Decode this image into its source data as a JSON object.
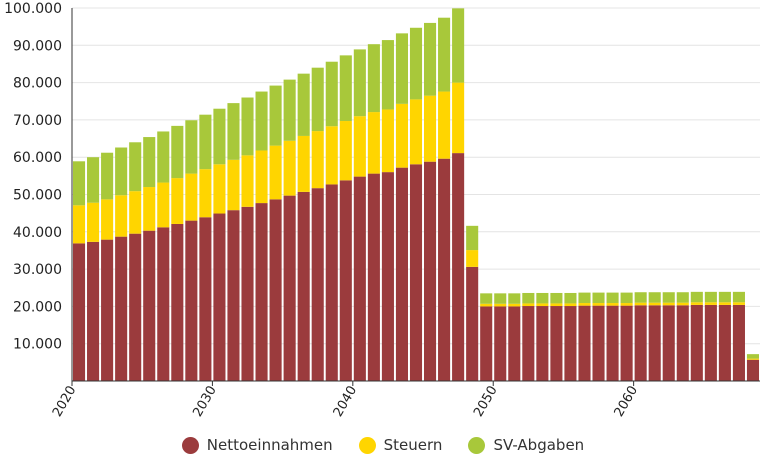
{
  "chart_data": {
    "type": "bar",
    "stacked": true,
    "x": [
      2020,
      2021,
      2022,
      2023,
      2024,
      2025,
      2026,
      2027,
      2028,
      2029,
      2030,
      2031,
      2032,
      2033,
      2034,
      2035,
      2036,
      2037,
      2038,
      2039,
      2040,
      2041,
      2042,
      2043,
      2044,
      2045,
      2046,
      2047,
      2048,
      2049,
      2050,
      2051,
      2052,
      2053,
      2054,
      2055,
      2056,
      2057,
      2058,
      2059,
      2060,
      2061,
      2062,
      2063,
      2064,
      2065,
      2066,
      2067,
      2068
    ],
    "x_tick_labels": [
      "2020",
      "2030",
      "2040",
      "2050",
      "2060"
    ],
    "y_tick_labels": [
      "10.000",
      "20.000",
      "30.000",
      "40.000",
      "50.000",
      "60.000",
      "70.000",
      "80.000",
      "90.000",
      "100.000"
    ],
    "ylim": [
      0,
      100000
    ],
    "legend_position": "bottom",
    "series": [
      {
        "name": "Nettoeinnahmen",
        "color": "#9b3b3d",
        "values": [
          36900,
          37300,
          37900,
          38700,
          39500,
          40300,
          41200,
          42100,
          43000,
          43900,
          44900,
          45800,
          46700,
          47700,
          48700,
          49700,
          50700,
          51700,
          52700,
          53800,
          54800,
          55600,
          56000,
          57200,
          58100,
          58800,
          59600,
          61100,
          30600,
          20000,
          20000,
          20000,
          20100,
          20100,
          20100,
          20100,
          20200,
          20200,
          20200,
          20200,
          20300,
          20300,
          20300,
          20300,
          20400,
          20400,
          20400,
          20400,
          5700
        ]
      },
      {
        "name": "Steuern",
        "color": "#ffd500",
        "values": [
          10200,
          10500,
          10800,
          11100,
          11400,
          11700,
          12000,
          12300,
          12600,
          12900,
          13200,
          13500,
          13800,
          14100,
          14400,
          14700,
          15000,
          15300,
          15600,
          15900,
          16200,
          16500,
          16800,
          17100,
          17400,
          17700,
          18000,
          18900,
          4500,
          700,
          700,
          700,
          700,
          700,
          700,
          700,
          700,
          700,
          700,
          700,
          700,
          700,
          700,
          700,
          700,
          700,
          700,
          700,
          300
        ]
      },
      {
        "name": "SV-Abgaben",
        "color": "#a8c83a",
        "values": [
          11800,
          12200,
          12500,
          12800,
          13100,
          13400,
          13700,
          14000,
          14300,
          14600,
          14900,
          15200,
          15500,
          15800,
          16100,
          16400,
          16700,
          17000,
          17300,
          17600,
          17900,
          18200,
          18600,
          18900,
          19200,
          19500,
          19800,
          19900,
          6500,
          2800,
          2800,
          2800,
          2800,
          2800,
          2800,
          2800,
          2800,
          2800,
          2800,
          2800,
          2800,
          2800,
          2800,
          2800,
          2800,
          2800,
          2800,
          2800,
          1200
        ]
      }
    ]
  }
}
